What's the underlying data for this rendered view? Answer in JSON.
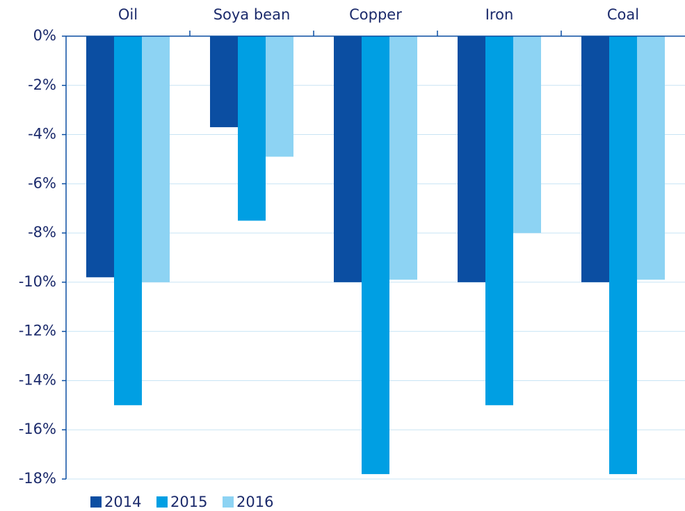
{
  "chart_data": {
    "type": "bar",
    "categories": [
      "Oil",
      "Soya bean",
      "Copper",
      "Iron",
      "Coal"
    ],
    "series": [
      {
        "name": "2014",
        "color": "#0b4ea2",
        "values": [
          -9.8,
          -3.7,
          -10,
          -10,
          -10
        ]
      },
      {
        "name": "2015",
        "color": "#009fe3",
        "values": [
          -15,
          -7.5,
          -17.8,
          -15,
          -17.8
        ]
      },
      {
        "name": "2016",
        "color": "#8dd3f3",
        "values": [
          -10,
          -4.9,
          -9.9,
          -8,
          -9.9
        ]
      }
    ],
    "ylim": [
      -18,
      0
    ],
    "yticks": [
      {
        "value": 0,
        "label": "0%"
      },
      {
        "value": -2,
        "label": "-2%"
      },
      {
        "value": -4,
        "label": "-4%"
      },
      {
        "value": -6,
        "label": "-6%"
      },
      {
        "value": -8,
        "label": "-8%"
      },
      {
        "value": -10,
        "label": "-10%"
      },
      {
        "value": -12,
        "label": "-12%"
      },
      {
        "value": -14,
        "label": "-14%"
      },
      {
        "value": -16,
        "label": "-16%"
      },
      {
        "value": -18,
        "label": "-18%"
      }
    ],
    "grid": true,
    "legend": "bottom-left"
  }
}
